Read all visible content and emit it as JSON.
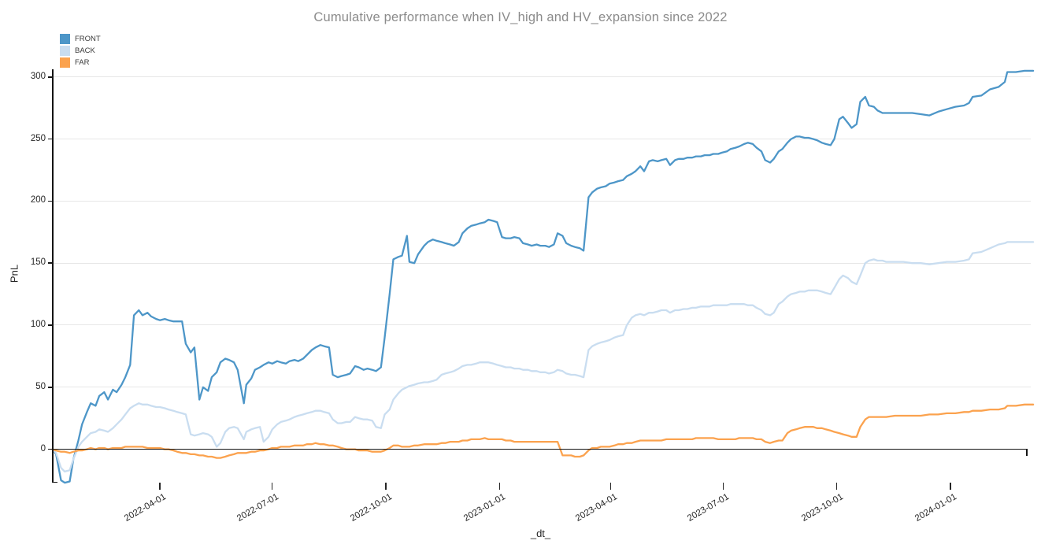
{
  "chart_data": {
    "type": "line",
    "title": "Cumulative performance when IV_high and HV_expansion since 2022",
    "xlabel": "_dt_",
    "ylabel": "PnL",
    "grid": "horizontal",
    "legend_position": "top-left",
    "ylim": [
      -26,
      306
    ],
    "xlim": [
      "2022-01-04",
      "2024-03-08"
    ],
    "y_ticks": [
      0,
      50,
      100,
      150,
      200,
      250,
      300
    ],
    "x_tick_labels": [
      "2022-04-01",
      "2022-07-01",
      "2022-10-01",
      "2023-01-01",
      "2023-04-01",
      "2023-07-01",
      "2023-10-01",
      "2024-01-01"
    ],
    "series": [
      {
        "name": "FRONT",
        "color": "#4d96c8"
      },
      {
        "name": "BACK",
        "color": "#c9ddf0"
      },
      {
        "name": "FAR",
        "color": "#fba24e"
      }
    ],
    "points_format": [
      "date",
      "FRONT",
      "BACK",
      "FAR"
    ],
    "points": [
      [
        "2022-01-04",
        0,
        0,
        0
      ],
      [
        "2022-01-07",
        -4,
        -3,
        -1
      ],
      [
        "2022-01-11",
        -25,
        -15,
        -2
      ],
      [
        "2022-01-14",
        -27,
        -18,
        -2
      ],
      [
        "2022-01-18",
        -26,
        -17,
        -3
      ],
      [
        "2022-01-21",
        -8,
        -8,
        -2
      ],
      [
        "2022-01-25",
        7,
        2,
        -1
      ],
      [
        "2022-01-28",
        20,
        6,
        -1
      ],
      [
        "2022-02-01",
        30,
        10,
        0
      ],
      [
        "2022-02-04",
        37,
        13,
        1
      ],
      [
        "2022-02-08",
        35,
        14,
        0
      ],
      [
        "2022-02-11",
        43,
        16,
        1
      ],
      [
        "2022-02-15",
        46,
        15,
        1
      ],
      [
        "2022-02-18",
        40,
        14,
        0
      ],
      [
        "2022-02-22",
        48,
        17,
        1
      ],
      [
        "2022-02-25",
        46,
        20,
        1
      ],
      [
        "2022-03-01",
        52,
        24,
        1
      ],
      [
        "2022-03-04",
        58,
        28,
        2
      ],
      [
        "2022-03-08",
        68,
        33,
        2
      ],
      [
        "2022-03-11",
        108,
        35,
        2
      ],
      [
        "2022-03-15",
        112,
        37,
        2
      ],
      [
        "2022-03-18",
        108,
        36,
        2
      ],
      [
        "2022-03-22",
        110,
        36,
        1
      ],
      [
        "2022-03-25",
        107,
        35,
        1
      ],
      [
        "2022-03-29",
        105,
        34,
        1
      ],
      [
        "2022-04-01",
        104,
        34,
        1
      ],
      [
        "2022-04-05",
        105,
        33,
        0
      ],
      [
        "2022-04-08",
        104,
        32,
        0
      ],
      [
        "2022-04-12",
        103,
        31,
        -1
      ],
      [
        "2022-04-15",
        103,
        30,
        -2
      ],
      [
        "2022-04-19",
        103,
        29,
        -3
      ],
      [
        "2022-04-22",
        85,
        28,
        -3
      ],
      [
        "2022-04-26",
        78,
        12,
        -4
      ],
      [
        "2022-04-29",
        82,
        11,
        -4
      ],
      [
        "2022-05-03",
        40,
        12,
        -5
      ],
      [
        "2022-05-06",
        50,
        13,
        -5
      ],
      [
        "2022-05-10",
        47,
        12,
        -6
      ],
      [
        "2022-05-13",
        58,
        10,
        -6
      ],
      [
        "2022-05-17",
        62,
        2,
        -7
      ],
      [
        "2022-05-20",
        70,
        5,
        -7
      ],
      [
        "2022-05-24",
        73,
        14,
        -6
      ],
      [
        "2022-05-27",
        72,
        17,
        -5
      ],
      [
        "2022-05-31",
        70,
        18,
        -4
      ],
      [
        "2022-06-03",
        64,
        17,
        -3
      ],
      [
        "2022-06-08",
        37,
        8,
        -3
      ],
      [
        "2022-06-10",
        52,
        14,
        -3
      ],
      [
        "2022-06-14",
        57,
        16,
        -2
      ],
      [
        "2022-06-17",
        64,
        17,
        -2
      ],
      [
        "2022-06-21",
        66,
        18,
        -1
      ],
      [
        "2022-06-24",
        68,
        6,
        -1
      ],
      [
        "2022-06-28",
        70,
        10,
        0
      ],
      [
        "2022-07-01",
        69,
        16,
        1
      ],
      [
        "2022-07-05",
        71,
        20,
        1
      ],
      [
        "2022-07-08",
        70,
        22,
        2
      ],
      [
        "2022-07-12",
        69,
        23,
        2
      ],
      [
        "2022-07-15",
        71,
        24,
        2
      ],
      [
        "2022-07-19",
        72,
        26,
        3
      ],
      [
        "2022-07-22",
        71,
        27,
        3
      ],
      [
        "2022-07-26",
        73,
        28,
        3
      ],
      [
        "2022-07-29",
        76,
        29,
        4
      ],
      [
        "2022-08-02",
        80,
        30,
        4
      ],
      [
        "2022-08-05",
        82,
        31,
        5
      ],
      [
        "2022-08-09",
        84,
        31,
        4
      ],
      [
        "2022-08-12",
        83,
        30,
        4
      ],
      [
        "2022-08-16",
        82,
        29,
        3
      ],
      [
        "2022-08-19",
        60,
        24,
        3
      ],
      [
        "2022-08-23",
        58,
        21,
        2
      ],
      [
        "2022-08-26",
        59,
        21,
        1
      ],
      [
        "2022-08-30",
        60,
        22,
        0
      ],
      [
        "2022-09-02",
        61,
        22,
        0
      ],
      [
        "2022-09-06",
        67,
        26,
        0
      ],
      [
        "2022-09-09",
        66,
        25,
        -1
      ],
      [
        "2022-09-13",
        64,
        24,
        -1
      ],
      [
        "2022-09-16",
        65,
        24,
        -1
      ],
      [
        "2022-09-20",
        64,
        23,
        -2
      ],
      [
        "2022-09-23",
        63,
        18,
        -2
      ],
      [
        "2022-09-27",
        66,
        17,
        -2
      ],
      [
        "2022-09-30",
        90,
        28,
        -1
      ],
      [
        "2022-10-04",
        125,
        32,
        1
      ],
      [
        "2022-10-07",
        153,
        40,
        3
      ],
      [
        "2022-10-11",
        155,
        45,
        3
      ],
      [
        "2022-10-14",
        156,
        48,
        2
      ],
      [
        "2022-10-18",
        172,
        50,
        2
      ],
      [
        "2022-10-20",
        151,
        51,
        2
      ],
      [
        "2022-10-24",
        150,
        52,
        3
      ],
      [
        "2022-10-27",
        157,
        53,
        3
      ],
      [
        "2022-11-01",
        164,
        54,
        4
      ],
      [
        "2022-11-04",
        167,
        54,
        4
      ],
      [
        "2022-11-08",
        169,
        55,
        4
      ],
      [
        "2022-11-11",
        168,
        56,
        4
      ],
      [
        "2022-11-15",
        167,
        60,
        5
      ],
      [
        "2022-11-18",
        166,
        61,
        5
      ],
      [
        "2022-11-22",
        165,
        62,
        6
      ],
      [
        "2022-11-25",
        164,
        63,
        6
      ],
      [
        "2022-11-29",
        167,
        65,
        6
      ],
      [
        "2022-12-02",
        174,
        67,
        7
      ],
      [
        "2022-12-06",
        178,
        68,
        7
      ],
      [
        "2022-12-09",
        180,
        68,
        8
      ],
      [
        "2022-12-13",
        181,
        69,
        8
      ],
      [
        "2022-12-16",
        182,
        70,
        8
      ],
      [
        "2022-12-20",
        183,
        70,
        9
      ],
      [
        "2022-12-23",
        185,
        70,
        8
      ],
      [
        "2022-12-27",
        184,
        69,
        8
      ],
      [
        "2022-12-30",
        183,
        68,
        8
      ],
      [
        "2023-01-03",
        171,
        67,
        8
      ],
      [
        "2023-01-06",
        170,
        66,
        7
      ],
      [
        "2023-01-10",
        170,
        66,
        7
      ],
      [
        "2023-01-13",
        171,
        65,
        6
      ],
      [
        "2023-01-17",
        170,
        65,
        6
      ],
      [
        "2023-01-20",
        166,
        64,
        6
      ],
      [
        "2023-01-24",
        165,
        64,
        6
      ],
      [
        "2023-01-27",
        164,
        63,
        6
      ],
      [
        "2023-01-31",
        165,
        63,
        6
      ],
      [
        "2023-02-03",
        164,
        62,
        6
      ],
      [
        "2023-02-07",
        164,
        62,
        6
      ],
      [
        "2023-02-10",
        163,
        61,
        6
      ],
      [
        "2023-02-14",
        165,
        62,
        6
      ],
      [
        "2023-02-17",
        174,
        64,
        6
      ],
      [
        "2023-02-21",
        172,
        63,
        -5
      ],
      [
        "2023-02-24",
        166,
        61,
        -5
      ],
      [
        "2023-02-28",
        164,
        60,
        -5
      ],
      [
        "2023-03-03",
        163,
        60,
        -6
      ],
      [
        "2023-03-07",
        162,
        59,
        -6
      ],
      [
        "2023-03-10",
        160,
        58,
        -5
      ],
      [
        "2023-03-14",
        203,
        80,
        -1
      ],
      [
        "2023-03-17",
        207,
        83,
        1
      ],
      [
        "2023-03-21",
        210,
        85,
        1
      ],
      [
        "2023-03-24",
        211,
        86,
        2
      ],
      [
        "2023-03-28",
        212,
        87,
        2
      ],
      [
        "2023-03-31",
        214,
        88,
        2
      ],
      [
        "2023-04-04",
        215,
        90,
        3
      ],
      [
        "2023-04-07",
        216,
        91,
        4
      ],
      [
        "2023-04-11",
        217,
        92,
        4
      ],
      [
        "2023-04-14",
        220,
        100,
        5
      ],
      [
        "2023-04-18",
        222,
        106,
        5
      ],
      [
        "2023-04-21",
        224,
        108,
        6
      ],
      [
        "2023-04-25",
        228,
        109,
        7
      ],
      [
        "2023-04-28",
        224,
        108,
        7
      ],
      [
        "2023-05-02",
        232,
        110,
        7
      ],
      [
        "2023-05-05",
        233,
        110,
        7
      ],
      [
        "2023-05-09",
        232,
        111,
        7
      ],
      [
        "2023-05-12",
        233,
        112,
        7
      ],
      [
        "2023-05-16",
        234,
        112,
        8
      ],
      [
        "2023-05-19",
        229,
        110,
        8
      ],
      [
        "2023-05-23",
        233,
        112,
        8
      ],
      [
        "2023-05-26",
        234,
        112,
        8
      ],
      [
        "2023-05-30",
        234,
        113,
        8
      ],
      [
        "2023-06-02",
        235,
        113,
        8
      ],
      [
        "2023-06-06",
        235,
        114,
        8
      ],
      [
        "2023-06-09",
        236,
        114,
        9
      ],
      [
        "2023-06-13",
        236,
        115,
        9
      ],
      [
        "2023-06-16",
        237,
        115,
        9
      ],
      [
        "2023-06-20",
        237,
        115,
        9
      ],
      [
        "2023-06-23",
        238,
        116,
        9
      ],
      [
        "2023-06-27",
        238,
        116,
        8
      ],
      [
        "2023-06-30",
        239,
        116,
        8
      ],
      [
        "2023-07-04",
        240,
        116,
        8
      ],
      [
        "2023-07-07",
        242,
        117,
        8
      ],
      [
        "2023-07-11",
        243,
        117,
        8
      ],
      [
        "2023-07-14",
        244,
        117,
        9
      ],
      [
        "2023-07-18",
        246,
        117,
        9
      ],
      [
        "2023-07-21",
        247,
        116,
        9
      ],
      [
        "2023-07-25",
        246,
        116,
        9
      ],
      [
        "2023-07-28",
        243,
        114,
        8
      ],
      [
        "2023-08-01",
        240,
        112,
        8
      ],
      [
        "2023-08-04",
        233,
        109,
        6
      ],
      [
        "2023-08-08",
        231,
        108,
        5
      ],
      [
        "2023-08-11",
        234,
        110,
        6
      ],
      [
        "2023-08-15",
        240,
        117,
        7
      ],
      [
        "2023-08-18",
        242,
        119,
        7
      ],
      [
        "2023-08-22",
        247,
        123,
        13
      ],
      [
        "2023-08-25",
        250,
        125,
        15
      ],
      [
        "2023-08-29",
        252,
        126,
        16
      ],
      [
        "2023-09-01",
        252,
        127,
        17
      ],
      [
        "2023-09-05",
        251,
        127,
        18
      ],
      [
        "2023-09-08",
        251,
        128,
        18
      ],
      [
        "2023-09-12",
        250,
        128,
        18
      ],
      [
        "2023-09-15",
        249,
        128,
        17
      ],
      [
        "2023-09-19",
        247,
        127,
        17
      ],
      [
        "2023-09-22",
        246,
        126,
        16
      ],
      [
        "2023-09-26",
        245,
        125,
        15
      ],
      [
        "2023-09-29",
        250,
        130,
        14
      ],
      [
        "2023-10-03",
        266,
        137,
        13
      ],
      [
        "2023-10-06",
        268,
        140,
        12
      ],
      [
        "2023-10-10",
        263,
        138,
        11
      ],
      [
        "2023-10-13",
        259,
        135,
        10
      ],
      [
        "2023-10-17",
        262,
        133,
        10
      ],
      [
        "2023-10-20",
        280,
        140,
        18
      ],
      [
        "2023-10-24",
        284,
        150,
        24
      ],
      [
        "2023-10-27",
        277,
        152,
        26
      ],
      [
        "2023-10-31",
        276,
        153,
        26
      ],
      [
        "2023-11-03",
        273,
        152,
        26
      ],
      [
        "2023-11-07",
        271,
        152,
        26
      ],
      [
        "2023-11-10",
        271,
        151,
        26
      ],
      [
        "2023-11-17",
        271,
        151,
        27
      ],
      [
        "2023-11-24",
        271,
        151,
        27
      ],
      [
        "2023-12-01",
        271,
        150,
        27
      ],
      [
        "2023-12-08",
        270,
        150,
        27
      ],
      [
        "2023-12-15",
        269,
        149,
        28
      ],
      [
        "2023-12-22",
        272,
        150,
        28
      ],
      [
        "2023-12-29",
        274,
        151,
        29
      ],
      [
        "2024-01-05",
        276,
        151,
        29
      ],
      [
        "2024-01-12",
        277,
        152,
        30
      ],
      [
        "2024-01-16",
        279,
        153,
        30
      ],
      [
        "2024-01-19",
        284,
        158,
        31
      ],
      [
        "2024-01-26",
        285,
        159,
        31
      ],
      [
        "2024-02-02",
        290,
        162,
        32
      ],
      [
        "2024-02-09",
        292,
        165,
        32
      ],
      [
        "2024-02-14",
        296,
        166,
        33
      ],
      [
        "2024-02-16",
        304,
        167,
        35
      ],
      [
        "2024-02-23",
        304,
        167,
        35
      ],
      [
        "2024-03-01",
        305,
        167,
        36
      ],
      [
        "2024-03-08",
        305,
        167,
        36
      ]
    ]
  }
}
